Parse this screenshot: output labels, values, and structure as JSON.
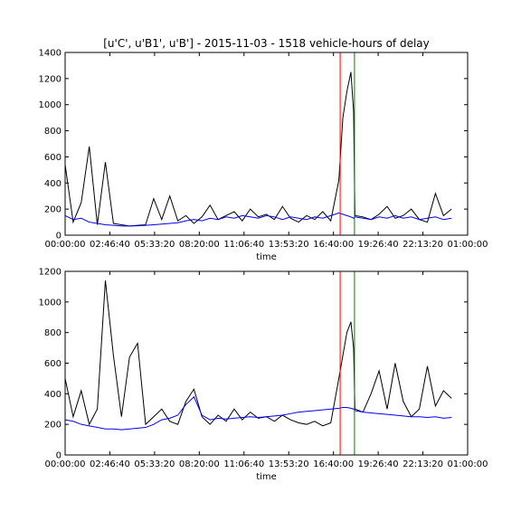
{
  "chart_data": [
    {
      "type": "line",
      "title": "[u'C', u'B1', u'B'] - 2015-11-03 - 1518 vehicle-hours of delay",
      "xlabel": "time",
      "x": [
        0,
        1800,
        3600,
        5400,
        7200,
        9000,
        10800,
        12600,
        14400,
        16200,
        18000,
        19800,
        21600,
        23400,
        25200,
        27000,
        28800,
        30600,
        32400,
        34200,
        36000,
        37800,
        39600,
        41400,
        43200,
        45000,
        46800,
        48600,
        50400,
        52200,
        54000,
        55800,
        57600,
        59400,
        61200,
        62100,
        63000,
        63900,
        64500,
        64800,
        66600,
        68400,
        70200,
        72000,
        73800,
        75600,
        77400,
        79200,
        81000,
        82800,
        84600,
        86400
      ],
      "series": [
        {
          "color": "#000000",
          "values": [
            540,
            100,
            250,
            680,
            80,
            560,
            90,
            80,
            70,
            75,
            80,
            280,
            120,
            300,
            110,
            150,
            90,
            140,
            230,
            120,
            150,
            180,
            110,
            200,
            140,
            160,
            120,
            220,
            130,
            100,
            150,
            120,
            180,
            110,
            420,
            900,
            1100,
            1250,
            950,
            150,
            140,
            120,
            160,
            220,
            130,
            150,
            200,
            120,
            100,
            320,
            150,
            200
          ]
        },
        {
          "color": "#0000ff",
          "values": [
            150,
            120,
            130,
            100,
            90,
            80,
            75,
            70,
            70,
            72,
            75,
            80,
            85,
            90,
            95,
            110,
            120,
            110,
            130,
            120,
            140,
            130,
            150,
            140,
            130,
            150,
            140,
            120,
            140,
            130,
            120,
            140,
            130,
            150,
            170,
            160,
            150,
            140,
            130,
            140,
            130,
            120,
            140,
            130,
            150,
            130,
            140,
            120,
            130,
            140,
            120,
            130
          ]
        }
      ],
      "vlines": [
        {
          "x": 61500,
          "color": "#ff0000"
        },
        {
          "x": 64700,
          "color": "#008000"
        }
      ],
      "xlim": [
        0,
        90000
      ],
      "xticks": [
        {
          "value": 0,
          "label": "00:00:00"
        },
        {
          "value": 10000,
          "label": "02:46:40"
        },
        {
          "value": 20000,
          "label": "05:33:20"
        },
        {
          "value": 30000,
          "label": "08:20:00"
        },
        {
          "value": 40000,
          "label": "11:06:40"
        },
        {
          "value": 50000,
          "label": "13:53:20"
        },
        {
          "value": 60000,
          "label": "16:40:00"
        },
        {
          "value": 70000,
          "label": "19:26:40"
        },
        {
          "value": 80000,
          "label": "22:13:20"
        },
        {
          "value": 90000,
          "label": "01:00:00"
        }
      ],
      "ylim": [
        0,
        1400
      ],
      "yticks": [
        0,
        200,
        400,
        600,
        800,
        1000,
        1200,
        1400
      ]
    },
    {
      "type": "line",
      "xlabel": "time",
      "x": [
        0,
        1800,
        3600,
        5400,
        7200,
        9000,
        10800,
        12600,
        14400,
        16200,
        18000,
        19800,
        21600,
        23400,
        25200,
        27000,
        28800,
        30600,
        32400,
        34200,
        36000,
        37800,
        39600,
        41400,
        43200,
        45000,
        46800,
        48600,
        50400,
        52200,
        54000,
        55800,
        57600,
        59400,
        61200,
        62100,
        63000,
        63900,
        64500,
        64800,
        66600,
        68400,
        70200,
        72000,
        73800,
        75600,
        77400,
        79200,
        81000,
        82800,
        84600,
        86400
      ],
      "series": [
        {
          "color": "#000000",
          "values": [
            500,
            250,
            420,
            200,
            300,
            1140,
            650,
            250,
            640,
            730,
            200,
            250,
            300,
            220,
            200,
            350,
            430,
            250,
            200,
            260,
            220,
            300,
            230,
            280,
            240,
            250,
            220,
            260,
            230,
            210,
            200,
            220,
            190,
            210,
            500,
            650,
            800,
            870,
            700,
            300,
            280,
            400,
            550,
            300,
            600,
            350,
            250,
            300,
            580,
            320,
            420,
            370
          ]
        },
        {
          "color": "#0000ff",
          "values": [
            230,
            220,
            200,
            190,
            180,
            170,
            170,
            165,
            170,
            175,
            180,
            200,
            230,
            240,
            260,
            330,
            380,
            260,
            230,
            240,
            235,
            240,
            245,
            250,
            245,
            250,
            255,
            260,
            270,
            280,
            285,
            290,
            295,
            300,
            305,
            310,
            310,
            305,
            300,
            290,
            280,
            275,
            270,
            265,
            260,
            255,
            250,
            250,
            245,
            250,
            240,
            245
          ]
        }
      ],
      "vlines": [
        {
          "x": 61500,
          "color": "#ff0000"
        },
        {
          "x": 64700,
          "color": "#008000"
        }
      ],
      "xlim": [
        0,
        90000
      ],
      "xticks": [
        {
          "value": 0,
          "label": "00:00:00"
        },
        {
          "value": 10000,
          "label": "02:46:40"
        },
        {
          "value": 20000,
          "label": "05:33:20"
        },
        {
          "value": 30000,
          "label": "08:20:00"
        },
        {
          "value": 40000,
          "label": "11:06:40"
        },
        {
          "value": 50000,
          "label": "13:53:20"
        },
        {
          "value": 60000,
          "label": "16:40:00"
        },
        {
          "value": 70000,
          "label": "19:26:40"
        },
        {
          "value": 80000,
          "label": "22:13:20"
        },
        {
          "value": 90000,
          "label": "01:00:00"
        }
      ],
      "ylim": [
        0,
        1200
      ],
      "yticks": [
        0,
        200,
        400,
        600,
        800,
        1000,
        1200
      ]
    }
  ]
}
